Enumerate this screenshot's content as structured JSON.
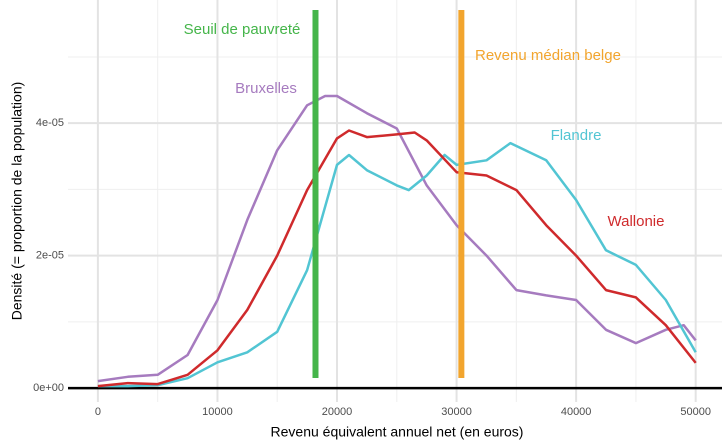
{
  "chart_data": {
    "type": "line",
    "x_label": "Revenu équivalent annuel net (en euros)",
    "y_label": "Densité (= proportion de la population)",
    "xlim": [
      -2500,
      52200
    ],
    "ylim": [
      -2.1e-06,
      5.86e-05
    ],
    "xticks": [
      0,
      10000,
      20000,
      30000,
      40000,
      50000
    ],
    "x_minor_grid": [
      5000,
      15000,
      25000,
      35000,
      45000
    ],
    "yticks": [
      {
        "value": 0,
        "label": "0e+00"
      },
      {
        "value": 2e-05,
        "label": "2e-05"
      },
      {
        "value": 4e-05,
        "label": "4e-05"
      }
    ],
    "y_minor_grid": [
      1e-05,
      3e-05,
      5e-05
    ],
    "grid": true,
    "hlines": [
      0
    ],
    "series": [
      {
        "name": "Bruxelles",
        "color": "#a67bbf",
        "x": [
          0,
          2500,
          5000,
          7500,
          10000,
          12500,
          15000,
          17500,
          19000,
          20000,
          22500,
          25000,
          27500,
          30000,
          32500,
          35000,
          37500,
          40000,
          42500,
          45000,
          47500,
          49000,
          50000
        ],
        "values": [
          1.06e-06,
          1.7e-06,
          2e-06,
          5e-06,
          1.33e-05,
          2.54e-05,
          3.59e-05,
          4.27e-05,
          4.41e-05,
          4.41e-05,
          4.15e-05,
          3.92e-05,
          3.06e-05,
          2.46e-05,
          2e-05,
          1.48e-05,
          1.4e-05,
          1.33e-05,
          8.8e-06,
          6.8e-06,
          8.8e-06,
          9.5e-06,
          7.2e-06
        ]
      },
      {
        "name": "Flandre",
        "color": "#52c5d3",
        "x": [
          0,
          2500,
          5000,
          7500,
          10000,
          12500,
          15000,
          17500,
          20000,
          21000,
          22500,
          25000,
          26000,
          27500,
          29000,
          30000,
          32500,
          34500,
          37500,
          40000,
          42500,
          45000,
          47500,
          50000
        ],
        "values": [
          3e-07,
          3e-07,
          4.5e-07,
          1.5e-06,
          3.9e-06,
          5.4e-06,
          8.5e-06,
          1.78e-05,
          3.37e-05,
          3.52e-05,
          3.29e-05,
          3.06e-05,
          2.99e-05,
          3.21e-05,
          3.52e-05,
          3.37e-05,
          3.44e-05,
          3.7e-05,
          3.44e-05,
          2.84e-05,
          2.08e-05,
          1.86e-05,
          1.33e-05,
          5.4e-06
        ]
      },
      {
        "name": "Wallonie",
        "color": "#cf2a2c",
        "x": [
          0,
          2500,
          5000,
          7500,
          10000,
          12500,
          15000,
          17500,
          20000,
          21000,
          22500,
          25000,
          26500,
          27500,
          30000,
          32500,
          35000,
          37500,
          40000,
          42500,
          45000,
          47500,
          50000
        ],
        "values": [
          3e-07,
          7.5e-07,
          6e-07,
          2e-06,
          5.7e-06,
          1.18e-05,
          2e-05,
          2.99e-05,
          3.77e-05,
          3.89e-05,
          3.79e-05,
          3.83e-05,
          3.86e-05,
          3.74e-05,
          3.26e-05,
          3.21e-05,
          2.99e-05,
          2.46e-05,
          2e-05,
          1.48e-05,
          1.37e-05,
          9.5e-06,
          3.8e-06
        ]
      }
    ],
    "vlines": [
      {
        "value": 18200,
        "label": "Seuil de pauvreté",
        "color": "#45b54a"
      },
      {
        "value": 30400,
        "label": "Revenu médian belge",
        "color": "#f2a52e"
      }
    ]
  }
}
